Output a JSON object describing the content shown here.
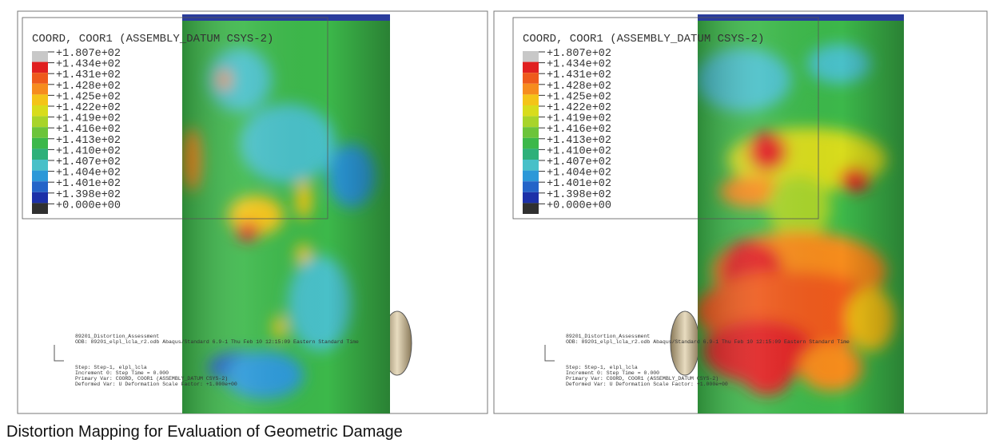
{
  "legend_colors": [
    "#c8c8c8",
    "#e02020",
    "#ee5a1c",
    "#f68c1e",
    "#f4c418",
    "#d8dc1c",
    "#a8d42a",
    "#6cc43a",
    "#3cb84a",
    "#2eb07a",
    "#48c0c8",
    "#2c98d8",
    "#2464c8",
    "#1c30a8",
    "#303030"
  ],
  "panels": [
    {
      "legend": {
        "title": "COORD, COOR1 (ASSEMBLY_DATUM CSYS-2)",
        "labels": [
          "+1.807e+02",
          "+1.434e+02",
          "+1.431e+02",
          "+1.428e+02",
          "+1.425e+02",
          "+1.422e+02",
          "+1.419e+02",
          "+1.416e+02",
          "+1.413e+02",
          "+1.410e+02",
          "+1.407e+02",
          "+1.404e+02",
          "+1.401e+02",
          "+1.398e+02",
          "+0.000e+00"
        ]
      },
      "info": [
        "89201_Distortion_Assessment",
        "ODB: 89201_elpl_lcla_r2.odb    Abaqus/Standard 6.9-1    Thu Feb 10 12:15:09 Eastern Standard Time",
        "Step: Step-1, elpl_lcla",
        "Increment    0: Step Time =    0.000",
        "Primary Var: COORD, COOR1 (ASSEMBLY_DATUM CSYS-2)",
        "Deformed Var: U   Deformation Scale Factor: +1.000e+00"
      ]
    },
    {
      "legend": {
        "title": "COORD, COOR1 (ASSEMBLY_DATUM CSYS-2)",
        "labels": [
          "+1.807e+02",
          "+1.434e+02",
          "+1.431e+02",
          "+1.428e+02",
          "+1.425e+02",
          "+1.422e+02",
          "+1.419e+02",
          "+1.416e+02",
          "+1.413e+02",
          "+1.410e+02",
          "+1.407e+02",
          "+1.404e+02",
          "+1.401e+02",
          "+1.398e+02",
          "+0.000e+00"
        ]
      },
      "info": [
        "89201_Distortion_Assessment",
        "ODB: 89201_elpl_lcla_r2.odb    Abaqus/Standard 6.9-1    Thu Feb 10 12:15:09 Eastern Standard Time",
        "Step: Step-1, elpl_lcla",
        "Increment    0: Step Time =    0.000",
        "Primary Var: COORD, COOR1 (ASSEMBLY_DATUM CSYS-2)",
        "Deformed Var: U   Deformation Scale Factor: +1.000e+00"
      ]
    }
  ],
  "caption": "Distortion Mapping for Evaluation of Geometric Damage"
}
